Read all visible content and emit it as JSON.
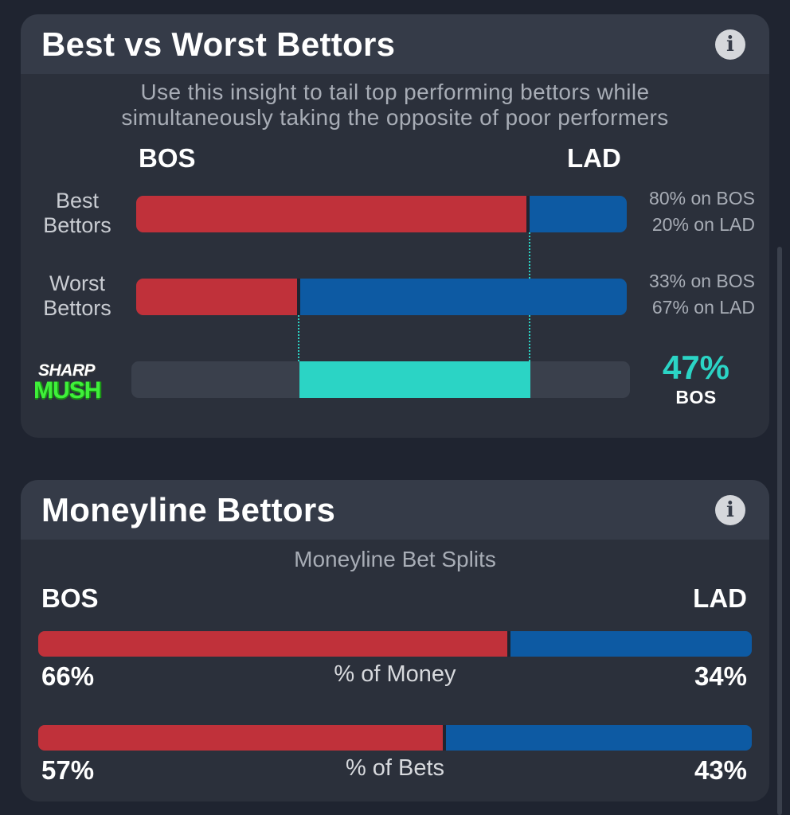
{
  "best_vs_worst": {
    "title": "Best vs Worst Bettors",
    "info_glyph": "i",
    "subtitle_line1": "Use this insight to tail top performing bettors while",
    "subtitle_line2": "simultaneously taking the opposite of poor performers",
    "team_left": "BOS",
    "team_right": "LAD",
    "rows": [
      {
        "label_line1": "Best",
        "label_line2": "Bettors",
        "left_pct": 80,
        "right_pct": 20,
        "left_text": "80% on BOS",
        "right_text": "20% on LAD"
      },
      {
        "label_line1": "Worst",
        "label_line2": "Bettors",
        "left_pct": 33,
        "right_pct": 67,
        "left_text": "33% on BOS",
        "right_text": "67% on LAD"
      }
    ],
    "sharp_mush": {
      "logo_top": "SHARP",
      "logo_bottom": "MUSH",
      "pct_text": "47%",
      "team": "BOS"
    }
  },
  "moneyline": {
    "title": "Moneyline Bettors",
    "info_glyph": "i",
    "heading": "Moneyline Bet Splits",
    "team_left": "BOS",
    "team_right": "LAD",
    "rows": [
      {
        "label": "% of Money",
        "left_pct": 66,
        "right_pct": 34,
        "left_text": "66%",
        "right_text": "34%"
      },
      {
        "label": "% of Bets",
        "left_pct": 57,
        "right_pct": 43,
        "left_text": "57%",
        "right_text": "43%"
      }
    ]
  },
  "colors": {
    "bos": "#c0313a",
    "lad": "#0d5aa3",
    "sharp_mush": "#2bd4c5",
    "background": "#1f2430",
    "card": "#2b303b"
  },
  "icons": {
    "info": "info-circle-icon",
    "logo": "sharp-mush-logo"
  }
}
